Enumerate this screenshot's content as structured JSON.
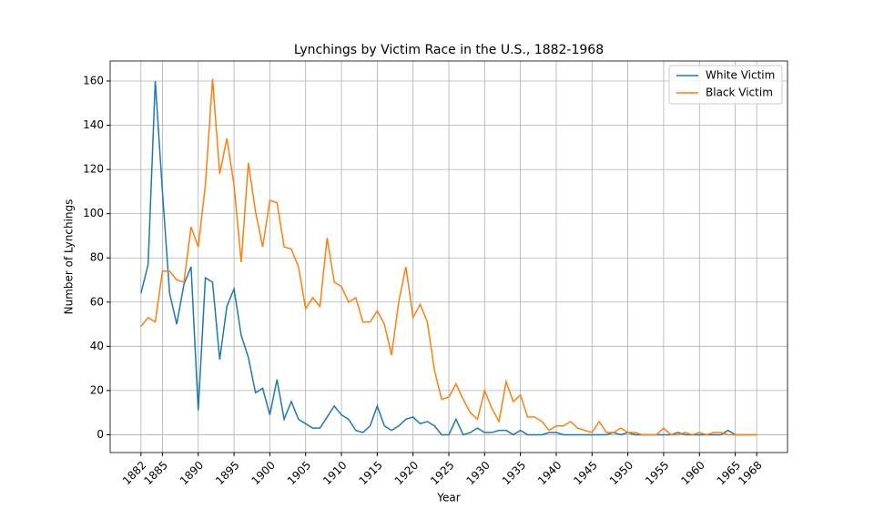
{
  "chart_data": {
    "type": "line",
    "title": "Lynchings by Victim Race in the U.S., 1882-1968",
    "x_label": "Year",
    "y_label": "Number of Lynchings",
    "x": [
      1882,
      1883,
      1884,
      1885,
      1886,
      1887,
      1888,
      1889,
      1890,
      1891,
      1892,
      1893,
      1894,
      1895,
      1896,
      1897,
      1898,
      1899,
      1900,
      1901,
      1902,
      1903,
      1904,
      1905,
      1906,
      1907,
      1908,
      1909,
      1910,
      1911,
      1912,
      1913,
      1914,
      1915,
      1916,
      1917,
      1918,
      1919,
      1920,
      1921,
      1922,
      1923,
      1924,
      1925,
      1926,
      1927,
      1928,
      1929,
      1930,
      1931,
      1932,
      1933,
      1934,
      1935,
      1936,
      1937,
      1938,
      1939,
      1940,
      1941,
      1942,
      1943,
      1944,
      1945,
      1946,
      1947,
      1948,
      1949,
      1950,
      1951,
      1952,
      1953,
      1954,
      1955,
      1956,
      1957,
      1958,
      1959,
      1960,
      1961,
      1962,
      1963,
      1964,
      1965,
      1966,
      1967,
      1968
    ],
    "series": [
      {
        "name": "White Victim",
        "color": "#1f77b4",
        "values": [
          64,
          77,
          160,
          110,
          64,
          50,
          68,
          76,
          11,
          71,
          69,
          34,
          58,
          66,
          45,
          35,
          19,
          21,
          9,
          25,
          7,
          15,
          7,
          5,
          3,
          3,
          8,
          13,
          9,
          7,
          2,
          1,
          4,
          13,
          4,
          2,
          4,
          7,
          8,
          5,
          6,
          4,
          0,
          0,
          7,
          0,
          1,
          3,
          1,
          1,
          2,
          2,
          0,
          2,
          0,
          0,
          0,
          1,
          1,
          0,
          0,
          0,
          0,
          0,
          0,
          0,
          1,
          0,
          1,
          0,
          0,
          0,
          0,
          0,
          0,
          1,
          0,
          0,
          0,
          0,
          0,
          0,
          2,
          0,
          0,
          0,
          0
        ]
      },
      {
        "name": "Black Victim",
        "color": "#ff7f0e",
        "values": [
          49,
          53,
          51,
          74,
          74,
          70,
          69,
          94,
          85,
          113,
          161,
          118,
          134,
          113,
          78,
          123,
          101,
          85,
          106,
          105,
          85,
          84,
          76,
          57,
          62,
          58,
          89,
          69,
          67,
          60,
          62,
          51,
          51,
          56,
          50,
          36,
          60,
          76,
          53,
          59,
          51,
          29,
          16,
          17,
          23,
          16,
          10,
          7,
          20,
          12,
          6,
          24,
          15,
          18,
          8,
          8,
          6,
          2,
          4,
          4,
          6,
          3,
          2,
          1,
          6,
          1,
          1,
          3,
          1,
          1,
          0,
          0,
          0,
          3,
          0,
          0,
          1,
          0,
          1,
          0,
          1,
          1,
          0,
          0,
          0,
          0,
          0
        ]
      }
    ],
    "xlim": [
      1877.7,
      1972.3
    ],
    "ylim": [
      -8.05,
      169.05
    ],
    "xticks": [
      1882,
      1885,
      1890,
      1895,
      1900,
      1905,
      1910,
      1915,
      1920,
      1925,
      1930,
      1935,
      1940,
      1945,
      1950,
      1955,
      1960,
      1965,
      1968
    ],
    "yticks": [
      0,
      20,
      40,
      60,
      80,
      100,
      120,
      140,
      160
    ],
    "grid": true,
    "legend": "upper right"
  }
}
